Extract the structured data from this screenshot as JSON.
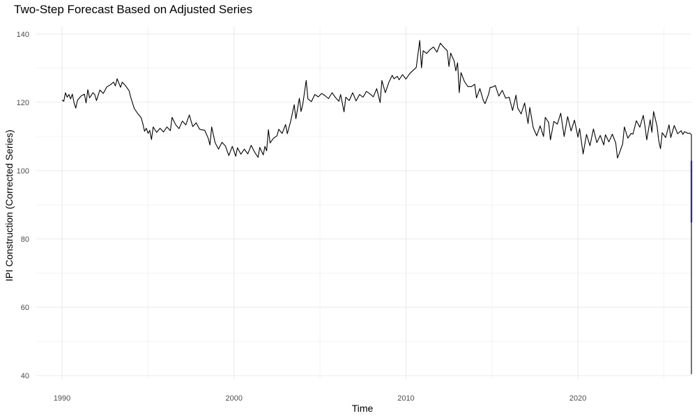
{
  "chart_data": {
    "type": "line",
    "title": "Two-Step Forecast Based on Adjusted Series",
    "xlabel": "Time",
    "ylabel": "IPI Construction (Corrected Series)",
    "xlim": [
      1988.5,
      2026.6
    ],
    "ylim": [
      38.8,
      142.2
    ],
    "x_ticks": [
      1990,
      2000,
      2010,
      2020
    ],
    "x_tick_labels": [
      "1990",
      "2000",
      "2010",
      "2020"
    ],
    "y_ticks": [
      40,
      60,
      80,
      100,
      120,
      140
    ],
    "y_tick_labels": [
      "40",
      "60",
      "80",
      "100",
      "120",
      "140"
    ],
    "grid": true,
    "background": "#ffffff",
    "series": [
      {
        "color": "#000000",
        "points": [
          [
            1990.0,
            120.7
          ],
          [
            1990.1,
            120.3
          ],
          [
            1990.2,
            122.8
          ],
          [
            1990.3,
            121.5
          ],
          [
            1990.4,
            122.3
          ],
          [
            1990.5,
            121.0
          ],
          [
            1990.6,
            122.4
          ],
          [
            1990.7,
            119.8
          ],
          [
            1990.8,
            118.3
          ],
          [
            1990.9,
            120.6
          ],
          [
            1991.1,
            121.8
          ],
          [
            1991.3,
            122.4
          ],
          [
            1991.4,
            119.8
          ],
          [
            1991.5,
            123.7
          ],
          [
            1991.6,
            121.3
          ],
          [
            1991.8,
            122.8
          ],
          [
            1991.9,
            122.3
          ],
          [
            1992.0,
            120.5
          ],
          [
            1992.2,
            123.6
          ],
          [
            1992.4,
            122.6
          ],
          [
            1992.6,
            124.5
          ],
          [
            1992.8,
            125.1
          ],
          [
            1993.0,
            125.9
          ],
          [
            1993.1,
            124.8
          ],
          [
            1993.2,
            126.9
          ],
          [
            1993.4,
            124.4
          ],
          [
            1993.5,
            125.9
          ],
          [
            1993.7,
            124.8
          ],
          [
            1993.9,
            123.4
          ],
          [
            1994.0,
            121.4
          ],
          [
            1994.2,
            118.2
          ],
          [
            1994.4,
            116.7
          ],
          [
            1994.6,
            115.5
          ],
          [
            1994.7,
            113.7
          ],
          [
            1994.8,
            111.5
          ],
          [
            1994.9,
            112.4
          ],
          [
            1995.0,
            110.9
          ],
          [
            1995.1,
            111.8
          ],
          [
            1995.2,
            109.1
          ],
          [
            1995.3,
            112.8
          ],
          [
            1995.5,
            111.2
          ],
          [
            1995.7,
            112.4
          ],
          [
            1995.9,
            111.3
          ],
          [
            1996.1,
            112.8
          ],
          [
            1996.3,
            111.7
          ],
          [
            1996.4,
            115.6
          ],
          [
            1996.6,
            113.5
          ],
          [
            1996.8,
            112.3
          ],
          [
            1997.0,
            114.5
          ],
          [
            1997.2,
            113.4
          ],
          [
            1997.4,
            116.3
          ],
          [
            1997.6,
            112.9
          ],
          [
            1997.8,
            114.0
          ],
          [
            1998.0,
            112.1
          ],
          [
            1998.3,
            111.8
          ],
          [
            1998.5,
            109.5
          ],
          [
            1998.6,
            107.5
          ],
          [
            1998.7,
            112.8
          ],
          [
            1998.9,
            108.2
          ],
          [
            1999.1,
            106.3
          ],
          [
            1999.3,
            108.3
          ],
          [
            1999.5,
            107.2
          ],
          [
            1999.7,
            104.4
          ],
          [
            1999.9,
            107.1
          ],
          [
            2000.1,
            104.2
          ],
          [
            2000.2,
            106.7
          ],
          [
            2000.4,
            104.8
          ],
          [
            2000.6,
            106.3
          ],
          [
            2000.8,
            104.9
          ],
          [
            2001.0,
            107.4
          ],
          [
            2001.2,
            105.4
          ],
          [
            2001.4,
            103.9
          ],
          [
            2001.5,
            106.8
          ],
          [
            2001.7,
            104.6
          ],
          [
            2001.8,
            107.1
          ],
          [
            2001.9,
            105.8
          ],
          [
            2002.0,
            112.0
          ],
          [
            2002.1,
            108.1
          ],
          [
            2002.3,
            109.5
          ],
          [
            2002.5,
            110.2
          ],
          [
            2002.6,
            112.1
          ],
          [
            2002.8,
            110.9
          ],
          [
            2003.0,
            113.5
          ],
          [
            2003.1,
            110.8
          ],
          [
            2003.3,
            114.5
          ],
          [
            2003.5,
            119.3
          ],
          [
            2003.6,
            115.2
          ],
          [
            2003.8,
            121.2
          ],
          [
            2003.9,
            117.3
          ],
          [
            2004.0,
            119.4
          ],
          [
            2004.2,
            126.4
          ],
          [
            2004.3,
            121.0
          ],
          [
            2004.5,
            120.2
          ],
          [
            2004.7,
            122.3
          ],
          [
            2004.9,
            121.6
          ],
          [
            2005.1,
            122.6
          ],
          [
            2005.3,
            121.9
          ],
          [
            2005.5,
            121.1
          ],
          [
            2005.7,
            122.8
          ],
          [
            2005.9,
            121.4
          ],
          [
            2006.1,
            120.3
          ],
          [
            2006.2,
            122.3
          ],
          [
            2006.4,
            117.2
          ],
          [
            2006.5,
            121.5
          ],
          [
            2006.7,
            120.5
          ],
          [
            2006.9,
            122.8
          ],
          [
            2007.1,
            120.4
          ],
          [
            2007.3,
            122.3
          ],
          [
            2007.5,
            121.5
          ],
          [
            2007.7,
            123.2
          ],
          [
            2007.9,
            122.5
          ],
          [
            2008.1,
            121.6
          ],
          [
            2008.3,
            124.0
          ],
          [
            2008.5,
            119.9
          ],
          [
            2008.6,
            126.4
          ],
          [
            2008.8,
            122.8
          ],
          [
            2009.0,
            125.8
          ],
          [
            2009.2,
            127.9
          ],
          [
            2009.3,
            126.9
          ],
          [
            2009.5,
            127.6
          ],
          [
            2009.6,
            126.6
          ],
          [
            2009.8,
            128.1
          ],
          [
            2010.0,
            126.8
          ],
          [
            2010.2,
            128.3
          ],
          [
            2010.4,
            129.3
          ],
          [
            2010.6,
            130.2
          ],
          [
            2010.8,
            138.1
          ],
          [
            2010.9,
            130.1
          ],
          [
            2011.0,
            135.1
          ],
          [
            2011.2,
            134.3
          ],
          [
            2011.4,
            135.4
          ],
          [
            2011.6,
            136.2
          ],
          [
            2011.8,
            134.7
          ],
          [
            2012.0,
            137.3
          ],
          [
            2012.2,
            136.1
          ],
          [
            2012.4,
            135.1
          ],
          [
            2012.5,
            130.5
          ],
          [
            2012.6,
            134.4
          ],
          [
            2012.8,
            132.1
          ],
          [
            2012.9,
            129.2
          ],
          [
            2013.0,
            131.6
          ],
          [
            2013.1,
            122.8
          ],
          [
            2013.2,
            128.7
          ],
          [
            2013.4,
            126.1
          ],
          [
            2013.6,
            124.6
          ],
          [
            2013.8,
            124.6
          ],
          [
            2014.0,
            125.3
          ],
          [
            2014.1,
            121.3
          ],
          [
            2014.3,
            124.0
          ],
          [
            2014.5,
            120.5
          ],
          [
            2014.6,
            119.6
          ],
          [
            2014.8,
            122.3
          ],
          [
            2014.9,
            124.4
          ],
          [
            2015.0,
            124.4
          ],
          [
            2015.2,
            124.9
          ],
          [
            2015.4,
            121.8
          ],
          [
            2015.6,
            123.5
          ],
          [
            2015.8,
            121.2
          ],
          [
            2016.0,
            121.5
          ],
          [
            2016.2,
            117.6
          ],
          [
            2016.4,
            122.1
          ],
          [
            2016.5,
            118.3
          ],
          [
            2016.7,
            116.6
          ],
          [
            2016.9,
            119.8
          ],
          [
            2017.1,
            113.8
          ],
          [
            2017.2,
            118.5
          ],
          [
            2017.4,
            112.6
          ],
          [
            2017.6,
            110.2
          ],
          [
            2017.8,
            113.1
          ],
          [
            2018.0,
            110.0
          ],
          [
            2018.1,
            115.6
          ],
          [
            2018.3,
            114.1
          ],
          [
            2018.4,
            109.0
          ],
          [
            2018.6,
            114.4
          ],
          [
            2018.8,
            113.6
          ],
          [
            2019.0,
            116.8
          ],
          [
            2019.2,
            110.0
          ],
          [
            2019.4,
            115.8
          ],
          [
            2019.6,
            111.6
          ],
          [
            2019.8,
            114.8
          ],
          [
            2020.0,
            109.8
          ],
          [
            2020.1,
            112.3
          ],
          [
            2020.3,
            104.9
          ],
          [
            2020.5,
            110.6
          ],
          [
            2020.7,
            107.3
          ],
          [
            2020.9,
            112.2
          ],
          [
            2021.1,
            108.2
          ],
          [
            2021.3,
            110.3
          ],
          [
            2021.5,
            107.5
          ],
          [
            2021.6,
            110.5
          ],
          [
            2021.8,
            108.4
          ],
          [
            2022.0,
            110.7
          ],
          [
            2022.2,
            108.1
          ],
          [
            2022.3,
            103.7
          ],
          [
            2022.4,
            105.0
          ],
          [
            2022.6,
            107.8
          ],
          [
            2022.7,
            112.8
          ],
          [
            2022.9,
            109.5
          ],
          [
            2023.1,
            110.9
          ],
          [
            2023.2,
            110.7
          ],
          [
            2023.4,
            114.6
          ],
          [
            2023.6,
            112.7
          ],
          [
            2023.8,
            116.2
          ],
          [
            2023.9,
            113.0
          ],
          [
            2024.0,
            109.0
          ],
          [
            2024.2,
            114.9
          ],
          [
            2024.3,
            111.2
          ],
          [
            2024.4,
            117.3
          ],
          [
            2024.6,
            113.0
          ],
          [
            2024.7,
            108.8
          ],
          [
            2024.8,
            106.4
          ],
          [
            2024.9,
            111.1
          ],
          [
            2025.1,
            109.7
          ],
          [
            2025.3,
            113.4
          ],
          [
            2025.4,
            109.7
          ],
          [
            2025.6,
            113.2
          ],
          [
            2025.8,
            110.8
          ],
          [
            2026.0,
            111.7
          ],
          [
            2026.1,
            110.6
          ],
          [
            2026.2,
            111.4
          ],
          [
            2026.4,
            110.9
          ],
          [
            2026.5,
            111.0
          ],
          [
            2026.6,
            110.5
          ],
          [
            2026.6,
            40.5
          ],
          [
            2026.6,
            75.0
          ],
          [
            2026.6,
            97.0
          ],
          [
            2026.6,
            99.5
          ],
          [
            2026.6,
            103.5
          ],
          [
            2026.6,
            107.6
          ],
          [
            2026.6,
            102.8
          ],
          [
            2026.6,
            101.0
          ],
          [
            2026.6,
            101.9
          ],
          [
            2026.6,
            101.2
          ],
          [
            2026.6,
            106.7
          ],
          [
            2026.6,
            101.8
          ],
          [
            2026.6,
            101.2
          ],
          [
            2026.6,
            100.3
          ],
          [
            2026.6,
            99.3
          ],
          [
            2026.6,
            97.2
          ],
          [
            2026.6,
            99.0
          ],
          [
            2026.6,
            95.0
          ],
          [
            2026.6,
            99.8
          ],
          [
            2026.6,
            97.4
          ],
          [
            2026.6,
            96.3
          ],
          [
            2026.6,
            94.9
          ],
          [
            2026.6,
            97.8
          ],
          [
            2026.6,
            96.4
          ],
          [
            2026.6,
            97.4
          ],
          [
            2026.6,
            98.9
          ],
          [
            2026.6,
            99.9
          ],
          [
            2026.6,
            98.3
          ],
          [
            2026.6,
            99.3
          ],
          [
            2026.6,
            97.3
          ],
          [
            2026.6,
            99.2
          ],
          [
            2026.6,
            97.1
          ],
          [
            2026.6,
            95.5
          ],
          [
            2026.6,
            98.5
          ],
          [
            2026.6,
            94.3
          ],
          [
            2026.6,
            93.6
          ],
          [
            2026.6,
            93.9
          ],
          [
            2026.6,
            91.5
          ],
          [
            2026.6,
            93.4
          ],
          [
            2026.6,
            96.0
          ],
          [
            2026.6,
            92.5
          ],
          [
            2026.6,
            93.5
          ],
          [
            2026.6,
            94.2
          ]
        ]
      },
      {
        "color": "#0000ff",
        "points": [
          [
            2026.6,
            93.9
          ],
          [
            2026.6,
            94.1
          ]
        ]
      }
    ],
    "intervals": [
      {
        "color": "#6b6bff",
        "x": 2026.6,
        "low": 85.0,
        "high": 102.7
      }
    ]
  }
}
